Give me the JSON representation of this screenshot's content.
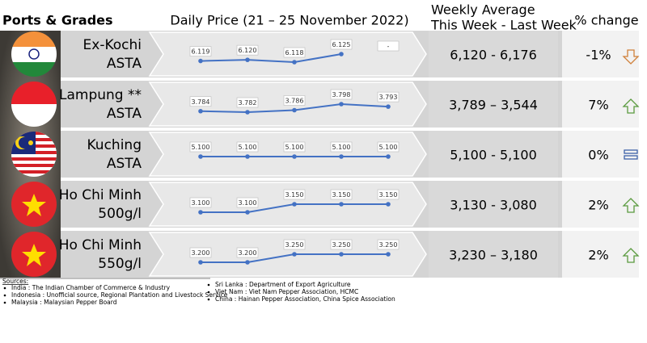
{
  "header": {
    "ports": "Ports & Grades",
    "daily": "Daily Price (21 – 25 November 2022)",
    "weekly_1": "Weekly Average",
    "weekly_2": "This Week - Last Week",
    "change": "% change"
  },
  "rows": [
    {
      "name_1": "Ex-Kochi",
      "name_2": "ASTA",
      "prices": [
        6.119,
        6.12,
        6.118,
        6.125,
        null
      ],
      "price_labels": [
        "6.119",
        "6.120",
        "6.118",
        "6.125",
        "-"
      ],
      "weekly": "6,120 - 6,176",
      "change": "-1%"
    },
    {
      "name_1": "Lampung **",
      "name_2": "ASTA",
      "prices": [
        3.784,
        3.782,
        3.786,
        3.798,
        3.793
      ],
      "price_labels": [
        "3.784",
        "3.782",
        "3.786",
        "3.798",
        "3.793"
      ],
      "weekly": "3,789 – 3,544",
      "change": "7%"
    },
    {
      "name_1": "Kuching",
      "name_2": "ASTA",
      "prices": [
        5.1,
        5.1,
        5.1,
        5.1,
        5.1
      ],
      "price_labels": [
        "5.100",
        "5.100",
        "5.100",
        "5.100",
        "5.100"
      ],
      "weekly": "5,100 - 5,100",
      "change": "0%"
    },
    {
      "name_1": "Ho Chi Minh",
      "name_2": "500g/l",
      "prices": [
        3.1,
        3.1,
        3.15,
        3.15,
        3.15
      ],
      "price_labels": [
        "3.100",
        "3.100",
        "3.150",
        "3.150",
        "3.150"
      ],
      "weekly": "3,130 - 3,080",
      "change": "2%"
    },
    {
      "name_1": "Ho Chi Minh",
      "name_2": "550g/l",
      "prices": [
        3.2,
        3.2,
        3.25,
        3.25,
        3.25
      ],
      "price_labels": [
        "3.200",
        "3.200",
        "3.250",
        "3.250",
        "3.250"
      ],
      "weekly": "3,230 – 3,180",
      "change": "2%"
    }
  ],
  "sources": {
    "title": "Sources:",
    "left": [
      "India : The Indian Chamber of Commerce & Industry",
      "Indonesia : Unofficial source, Regional Plantation and Livestock Service",
      "Malaysia : Malaysian Pepper Board"
    ],
    "right": [
      "Sri Lanka : Department of Export Agriculture",
      "Viet Nam : Viet Nam Pepper Association, HCMC",
      "China : Hainan Pepper Association, China Spice Association"
    ]
  }
}
